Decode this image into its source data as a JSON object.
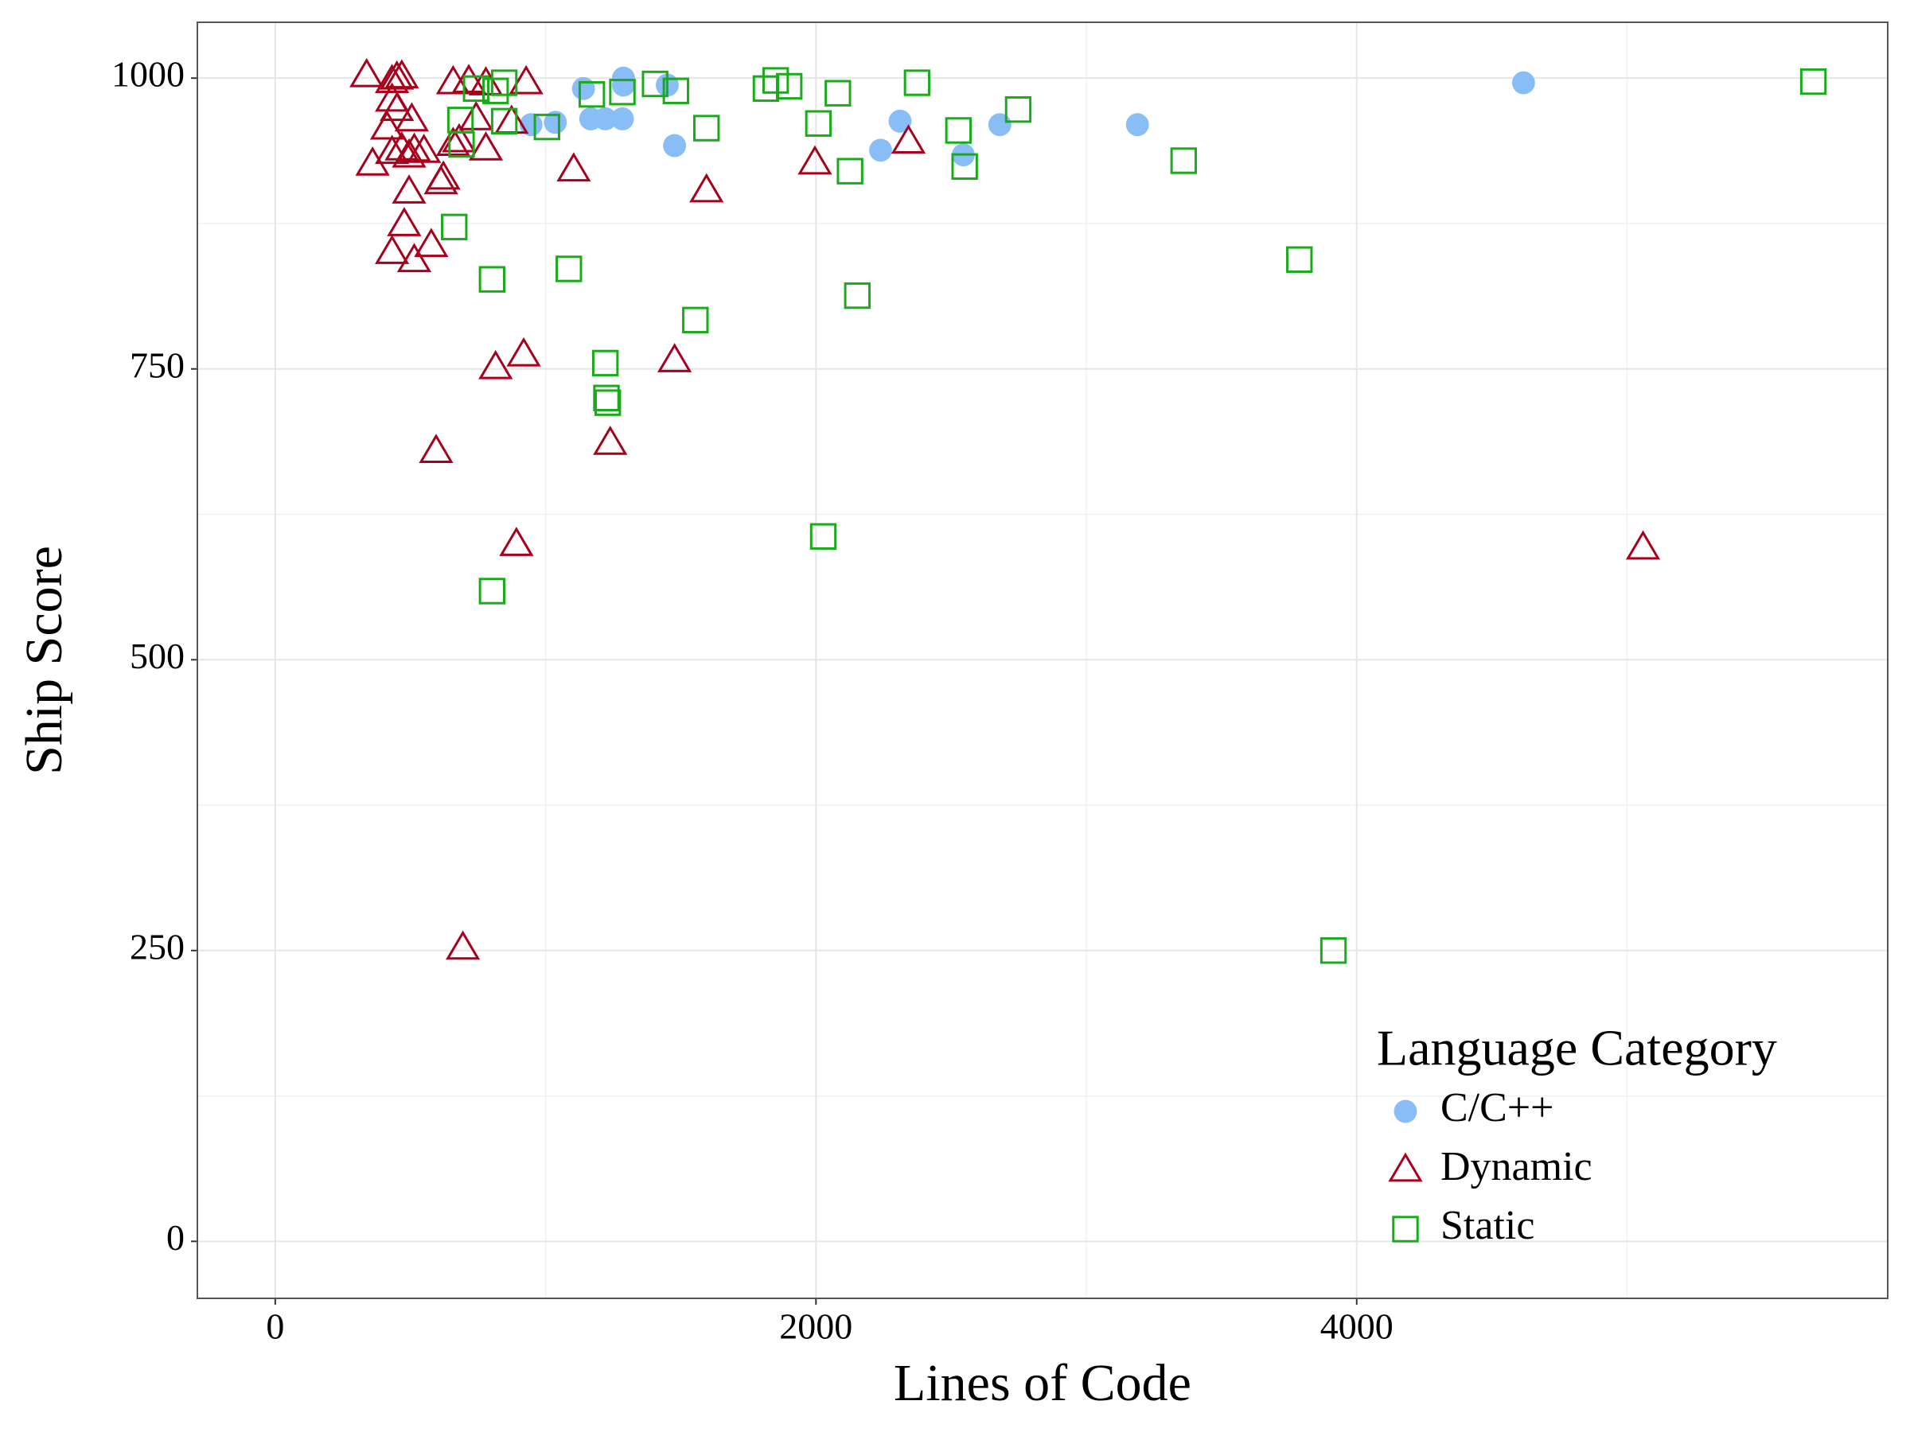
{
  "chart_data": {
    "type": "scatter",
    "xlabel": "Lines of Code",
    "ylabel": "Ship Score",
    "xlim": [
      -288,
      5964
    ],
    "ylim": [
      -49,
      1048
    ],
    "xticks": [
      0,
      2000,
      4000
    ],
    "yticks": [
      0,
      250,
      500,
      750,
      1000
    ],
    "minor_xticks": [
      1000,
      3000,
      5000
    ],
    "minor_yticks": [
      125,
      375,
      625,
      875
    ],
    "grid": true,
    "legend_title": "Language Category",
    "legend_position": "bottom-right",
    "series": [
      {
        "name": "C/C++",
        "color": "#88bdf6",
        "marker": "circle",
        "filled": true,
        "x": [
          1036,
          1140,
          1167,
          1221,
          1284,
          1288,
          1288,
          1450,
          1477,
          2239,
          2311,
          2545,
          2680,
          3189,
          4617,
          946
        ],
        "values": [
          962,
          991,
          965,
          965,
          965,
          1000,
          994,
          994,
          942,
          938,
          963,
          934,
          960,
          960,
          996,
          960
        ]
      },
      {
        "name": "Dynamic",
        "color": "#a8001c",
        "marker": "triangle",
        "filled": false,
        "x": [
          338,
          432,
          450,
          468,
          432,
          450,
          414,
          505,
          432,
          468,
          514,
          550,
          360,
          495,
          613,
          622,
          495,
          477,
          432,
          514,
          577,
          658,
          680,
          716,
          658,
          743,
          779,
          779,
          874,
          928,
          1104,
          1595,
          1996,
          2342,
          1477,
          919,
          815,
          1239,
          595,
          892,
          5059,
          694
        ],
        "values": [
          1002,
          997,
          1000,
          1001,
          981,
          973,
          957,
          964,
          936,
          939,
          938,
          937,
          926,
          933,
          910,
          914,
          902,
          874,
          850,
          843,
          856,
          943,
          946,
          997,
          996,
          965,
          995,
          939,
          962,
          996,
          921,
          903,
          927,
          945,
          757,
          762,
          751,
          686,
          679,
          599,
          596,
          252
        ]
      },
      {
        "name": "Static",
        "color": "#1aab1a",
        "marker": "square",
        "filled": false,
        "x": [
          662,
          685,
          689,
          743,
          815,
          847,
          847,
          1005,
          1171,
          1284,
          1405,
          1482,
          1595,
          1815,
          1851,
          1901,
          2009,
          2081,
          2126,
          2374,
          2527,
          2550,
          2748,
          3360,
          3788,
          5689,
          802,
          1086,
          2153,
          1554,
          1221,
          1225,
          1230,
          2027,
          802,
          3914
        ],
        "values": [
          872,
          964,
          943,
          991,
          989,
          996,
          963,
          958,
          986,
          988,
          995,
          989,
          957,
          991,
          998,
          993,
          961,
          987,
          920,
          996,
          955,
          924,
          973,
          929,
          844,
          997,
          827,
          836,
          813,
          792,
          755,
          725,
          721,
          606,
          559,
          250
        ]
      }
    ]
  }
}
